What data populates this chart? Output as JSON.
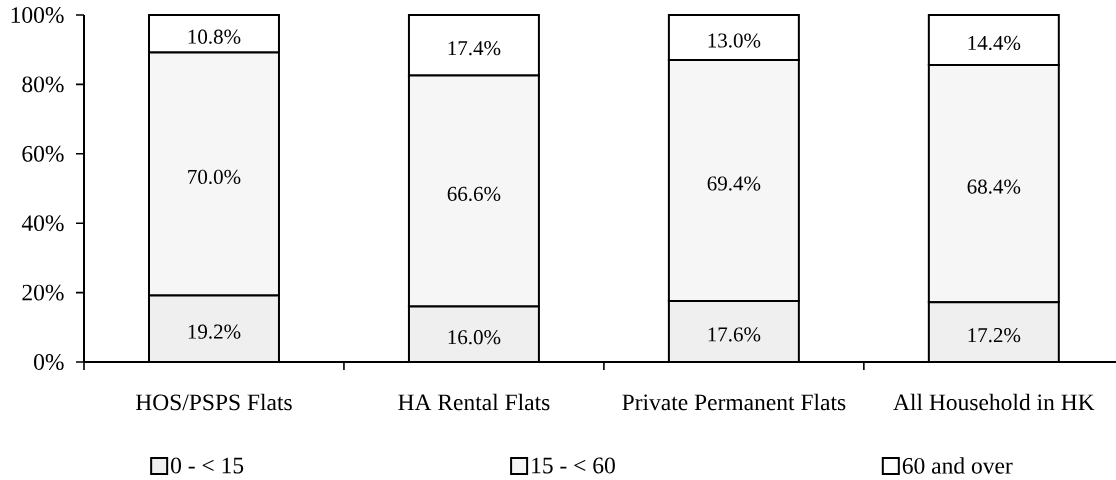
{
  "chart_data": {
    "type": "bar",
    "stacked": true,
    "categories": [
      "HOS/PSPS Flats",
      "HA Rental Flats",
      "Private Permanent Flats",
      "All Household in HK"
    ],
    "series": [
      {
        "name": "0 - < 15",
        "color": "#efefef",
        "values": [
          19.2,
          16.0,
          17.6,
          17.2
        ],
        "value_labels": [
          "19.2%",
          "16.0%",
          "17.6%",
          "17.2%"
        ]
      },
      {
        "name": "15 - < 60",
        "color": "#f6f6f6",
        "values": [
          70.0,
          66.6,
          69.4,
          68.4
        ],
        "value_labels": [
          "70.0%",
          "66.6%",
          "69.4%",
          "68.4%"
        ]
      },
      {
        "name": "60 and over",
        "color": "#ffffff",
        "values": [
          10.8,
          17.4,
          13.0,
          14.4
        ],
        "value_labels": [
          "10.8%",
          "17.4%",
          "13.0%",
          "14.4%"
        ]
      }
    ],
    "ylim": [
      0,
      100
    ],
    "yticks": [
      {
        "value": 0,
        "label": "0%"
      },
      {
        "value": 20,
        "label": "20%"
      },
      {
        "value": 40,
        "label": "40%"
      },
      {
        "value": 60,
        "label": "60%"
      },
      {
        "value": 80,
        "label": "80%"
      },
      {
        "value": 100,
        "label": "100%"
      }
    ],
    "legend": "bottom"
  }
}
